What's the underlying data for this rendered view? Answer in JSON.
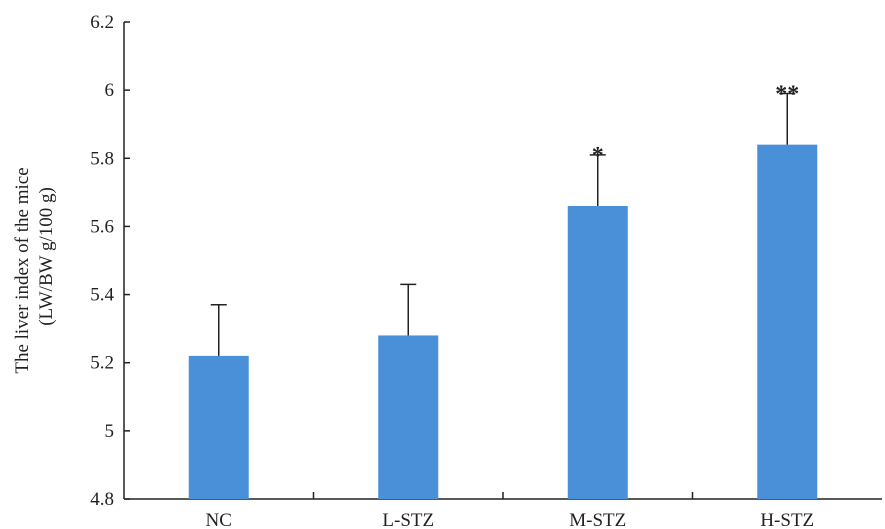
{
  "chart_data": {
    "type": "bar",
    "title": "",
    "xlabel": "",
    "ylabel_line1": "The liver index of the mice",
    "ylabel_line2": "(LW/BW g/100 g)",
    "ylim": [
      4.8,
      6.2
    ],
    "yticks": [
      4.8,
      5,
      5.2,
      5.4,
      5.6,
      5.8,
      6,
      6.2
    ],
    "ytick_labels": [
      "4.8",
      "5",
      "5.2",
      "5.4",
      "5.6",
      "5.8",
      "6",
      "6.2"
    ],
    "categories": [
      "NC",
      "L-STZ",
      "M-STZ",
      "H-STZ"
    ],
    "values": [
      5.22,
      5.28,
      5.66,
      5.84
    ],
    "errors": [
      0.15,
      0.15,
      0.15,
      0.15
    ],
    "significance": [
      "",
      "",
      "*",
      "**"
    ],
    "bar_color": "#4a90d9",
    "axis_color": "#222222",
    "grid": false,
    "legend": "none"
  }
}
